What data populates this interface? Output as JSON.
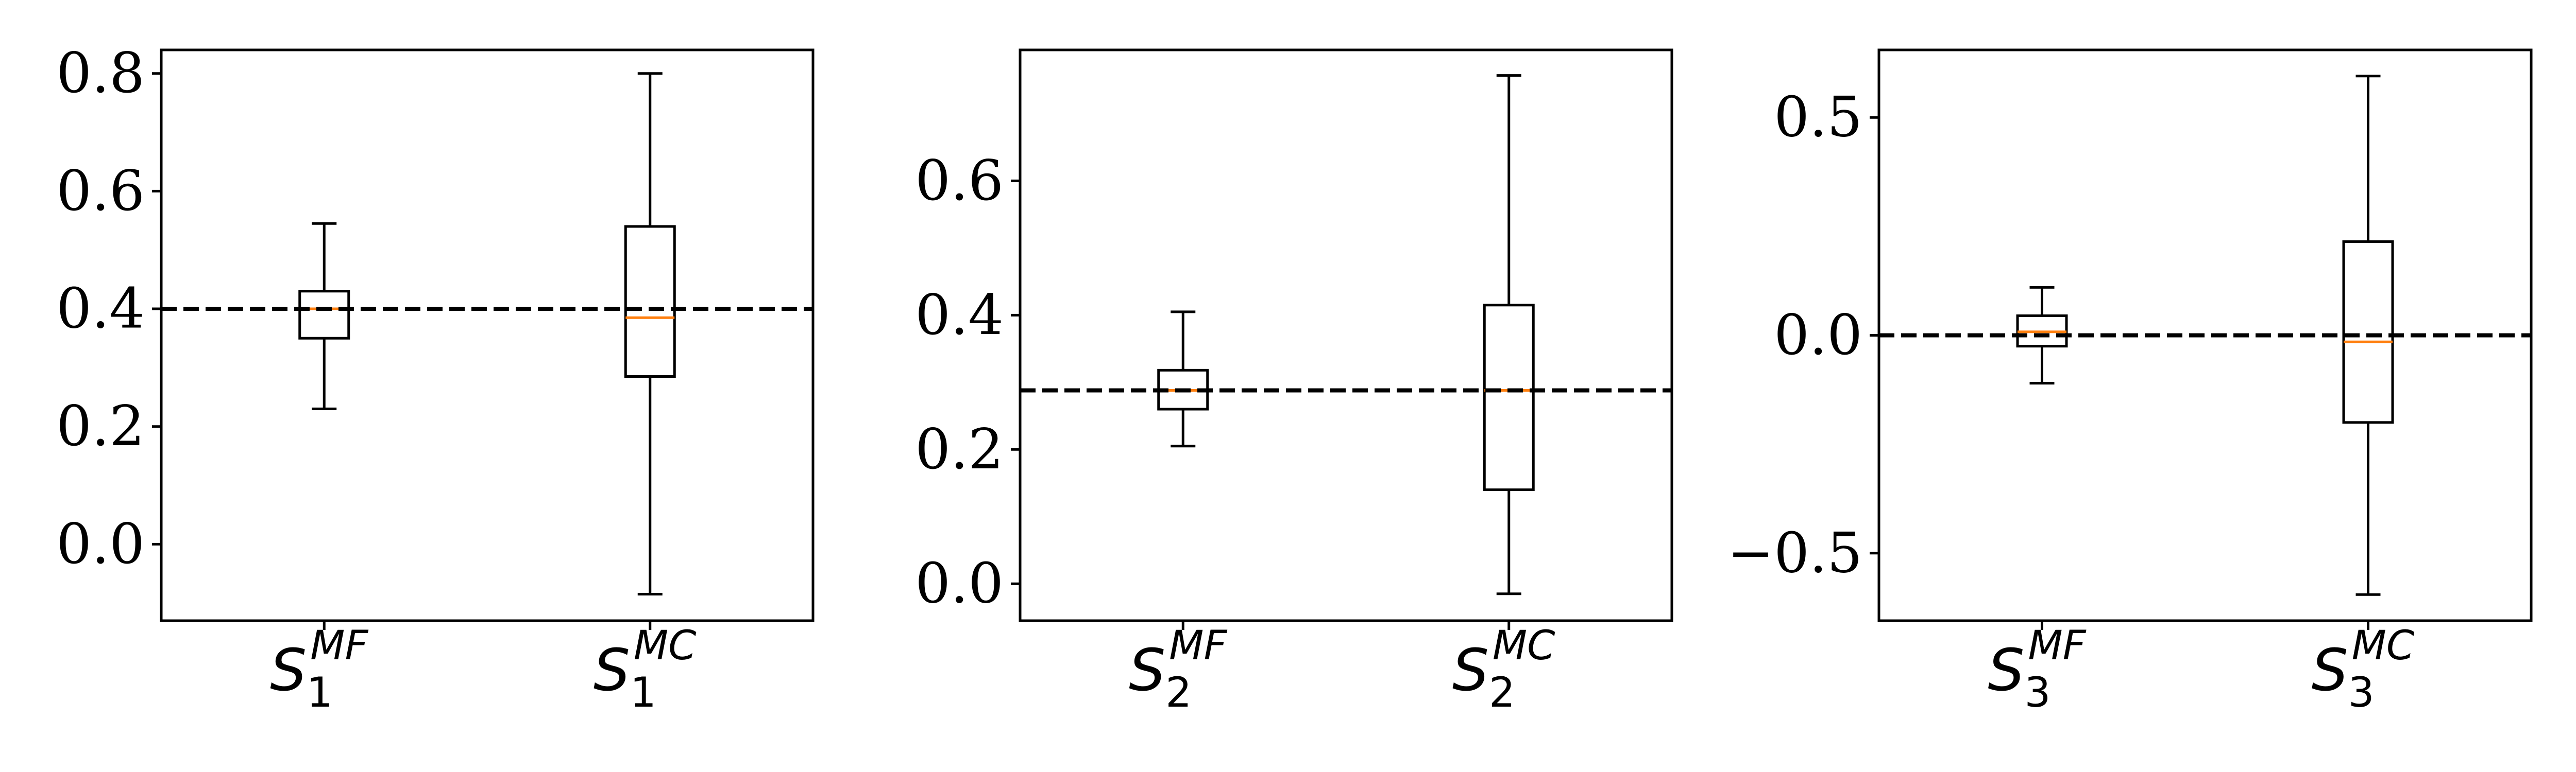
{
  "colors": {
    "box": "#000000",
    "median": "#ff7f0e",
    "reference_line": "#000000",
    "background": "#ffffff"
  },
  "chart_data": [
    {
      "type": "boxplot",
      "title": "",
      "xlabel": "",
      "ylabel": "",
      "ylim": [
        -0.13,
        0.84
      ],
      "yticks": [
        0.0,
        0.2,
        0.4,
        0.6,
        0.8
      ],
      "ytick_labels": [
        "0.0",
        "0.2",
        "0.4",
        "0.6",
        "0.8"
      ],
      "grid": false,
      "reference_line": {
        "y": 0.4,
        "style": "dashed"
      },
      "categories": [
        {
          "base": "S",
          "sub": "1",
          "sup": "MF"
        },
        {
          "base": "S",
          "sub": "1",
          "sup": "MC"
        }
      ],
      "boxes": [
        {
          "whisker_low": 0.23,
          "q1": 0.35,
          "median": 0.4,
          "q3": 0.43,
          "whisker_high": 0.545
        },
        {
          "whisker_low": -0.085,
          "q1": 0.285,
          "median": 0.385,
          "q3": 0.54,
          "whisker_high": 0.8
        }
      ]
    },
    {
      "type": "boxplot",
      "title": "",
      "xlabel": "",
      "ylabel": "",
      "ylim": [
        -0.055,
        0.795
      ],
      "yticks": [
        0.0,
        0.2,
        0.4,
        0.6
      ],
      "ytick_labels": [
        "0.0",
        "0.2",
        "0.4",
        "0.6"
      ],
      "grid": false,
      "reference_line": {
        "y": 0.288,
        "style": "dashed"
      },
      "categories": [
        {
          "base": "S",
          "sub": "2",
          "sup": "MF"
        },
        {
          "base": "S",
          "sub": "2",
          "sup": "MC"
        }
      ],
      "boxes": [
        {
          "whisker_low": 0.205,
          "q1": 0.26,
          "median": 0.288,
          "q3": 0.318,
          "whisker_high": 0.405
        },
        {
          "whisker_low": -0.015,
          "q1": 0.14,
          "median": 0.288,
          "q3": 0.415,
          "whisker_high": 0.757
        }
      ]
    },
    {
      "type": "boxplot",
      "title": "",
      "xlabel": "",
      "ylabel": "",
      "ylim": [
        -0.655,
        0.655
      ],
      "yticks": [
        -0.5,
        0.0,
        0.5
      ],
      "ytick_labels": [
        "−0.5",
        "0.0",
        "0.5"
      ],
      "grid": false,
      "reference_line": {
        "y": 0.0,
        "style": "dashed"
      },
      "categories": [
        {
          "base": "S",
          "sub": "3",
          "sup": "MF"
        },
        {
          "base": "S",
          "sub": "3",
          "sup": "MC"
        }
      ],
      "boxes": [
        {
          "whisker_low": -0.11,
          "q1": -0.025,
          "median": 0.008,
          "q3": 0.045,
          "whisker_high": 0.11
        },
        {
          "whisker_low": -0.595,
          "q1": -0.2,
          "median": -0.015,
          "q3": 0.215,
          "whisker_high": 0.595
        }
      ]
    }
  ]
}
